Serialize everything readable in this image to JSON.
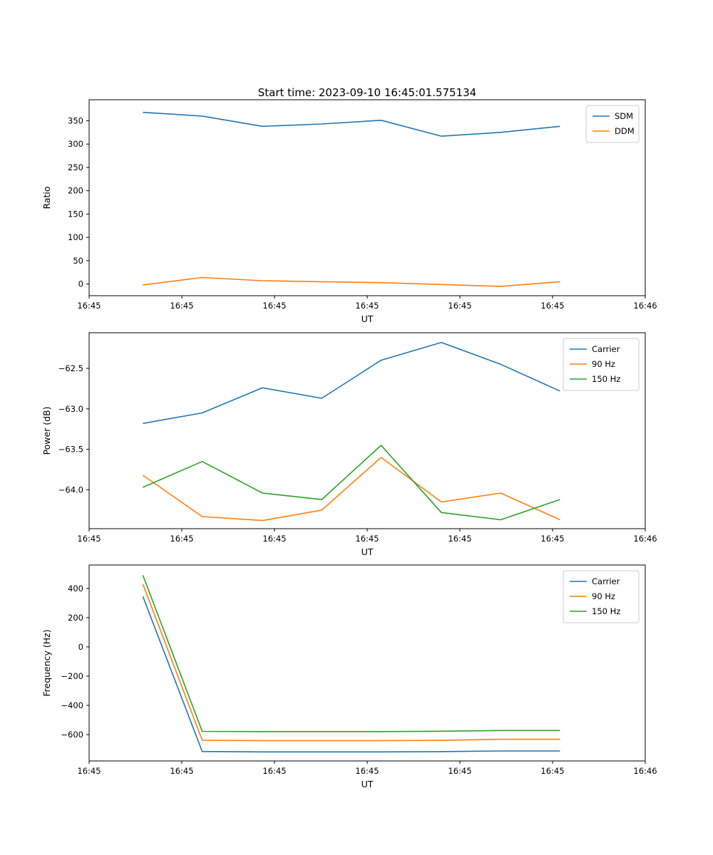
{
  "figure": {
    "title": "Start time: 2023-09-10 16:45:01.575134"
  },
  "colors": {
    "blue": "#1f77b4",
    "orange": "#ff7f0e",
    "green": "#2ca02c"
  },
  "chart_data": [
    {
      "name": "ratio",
      "type": "line",
      "title": "Start time: 2023-09-10 16:45:01.575134",
      "xlabel": "UT",
      "ylabel": "Ratio",
      "grid": false,
      "legend_position": "upper right",
      "xlim": [
        0,
        6
      ],
      "ylim": [
        -25,
        395
      ],
      "x_tick_labels": [
        "16:45",
        "16:45",
        "16:45",
        "16:45",
        "16:45",
        "16:45",
        "16:46"
      ],
      "y_ticks": [
        0,
        50,
        100,
        150,
        200,
        250,
        300,
        350
      ],
      "y_tick_labels": [
        "0",
        "50",
        "100",
        "150",
        "200",
        "250",
        "300",
        "350"
      ],
      "x": [
        0.58,
        1.22,
        1.87,
        2.51,
        3.15,
        3.8,
        4.44,
        5.08
      ],
      "series": [
        {
          "name": "SDM",
          "color": "#1f77b4",
          "values": [
            368,
            360,
            338,
            343,
            351,
            317,
            325,
            338
          ]
        },
        {
          "name": "DDM",
          "color": "#ff7f0e",
          "values": [
            -2,
            14,
            7,
            5,
            3,
            -1,
            -5,
            5
          ]
        }
      ]
    },
    {
      "name": "power",
      "type": "line",
      "title": "",
      "xlabel": "UT",
      "ylabel": "Power (dB)",
      "grid": false,
      "legend_position": "upper right",
      "xlim": [
        0,
        6
      ],
      "ylim": [
        -64.48,
        -62.06
      ],
      "x_tick_labels": [
        "16:45",
        "16:45",
        "16:45",
        "16:45",
        "16:45",
        "16:45",
        "16:46"
      ],
      "y_ticks": [
        -62.5,
        -63.0,
        -63.5,
        -64.0
      ],
      "y_tick_labels": [
        "−62.5",
        "−63.0",
        "−63.5",
        "−64.0"
      ],
      "x": [
        0.58,
        1.22,
        1.87,
        2.51,
        3.15,
        3.8,
        4.44,
        5.08
      ],
      "series": [
        {
          "name": "Carrier",
          "color": "#1f77b4",
          "values": [
            -63.18,
            -63.05,
            -62.74,
            -62.87,
            -62.4,
            -62.18,
            -62.45,
            -62.78
          ]
        },
        {
          "name": "90 Hz",
          "color": "#ff7f0e",
          "values": [
            -63.82,
            -64.33,
            -64.38,
            -64.25,
            -63.6,
            -64.15,
            -64.04,
            -64.37
          ]
        },
        {
          "name": "150 Hz",
          "color": "#2ca02c",
          "values": [
            -63.97,
            -63.65,
            -64.04,
            -64.12,
            -63.45,
            -64.28,
            -64.37,
            -64.12
          ]
        }
      ]
    },
    {
      "name": "frequency",
      "type": "line",
      "title": "",
      "xlabel": "UT",
      "ylabel": "Frequency (Hz)",
      "grid": false,
      "legend_position": "upper right",
      "xlim": [
        0,
        6
      ],
      "ylim": [
        -780,
        560
      ],
      "x_tick_labels": [
        "16:45",
        "16:45",
        "16:45",
        "16:45",
        "16:45",
        "16:45",
        "16:46"
      ],
      "y_ticks": [
        400,
        200,
        0,
        -200,
        -400,
        -600
      ],
      "y_tick_labels": [
        "400",
        "200",
        "0",
        "−200",
        "−400",
        "−600"
      ],
      "x": [
        0.58,
        1.22,
        1.87,
        2.51,
        3.15,
        3.8,
        4.44,
        5.08
      ],
      "series": [
        {
          "name": "Carrier",
          "color": "#1f77b4",
          "values": [
            345,
            -715,
            -718,
            -718,
            -718,
            -716,
            -712,
            -712
          ]
        },
        {
          "name": "90 Hz",
          "color": "#ff7f0e",
          "values": [
            430,
            -638,
            -641,
            -641,
            -641,
            -639,
            -632,
            -632
          ]
        },
        {
          "name": "150 Hz",
          "color": "#2ca02c",
          "values": [
            490,
            -578,
            -579,
            -579,
            -579,
            -577,
            -572,
            -572
          ]
        }
      ]
    }
  ]
}
